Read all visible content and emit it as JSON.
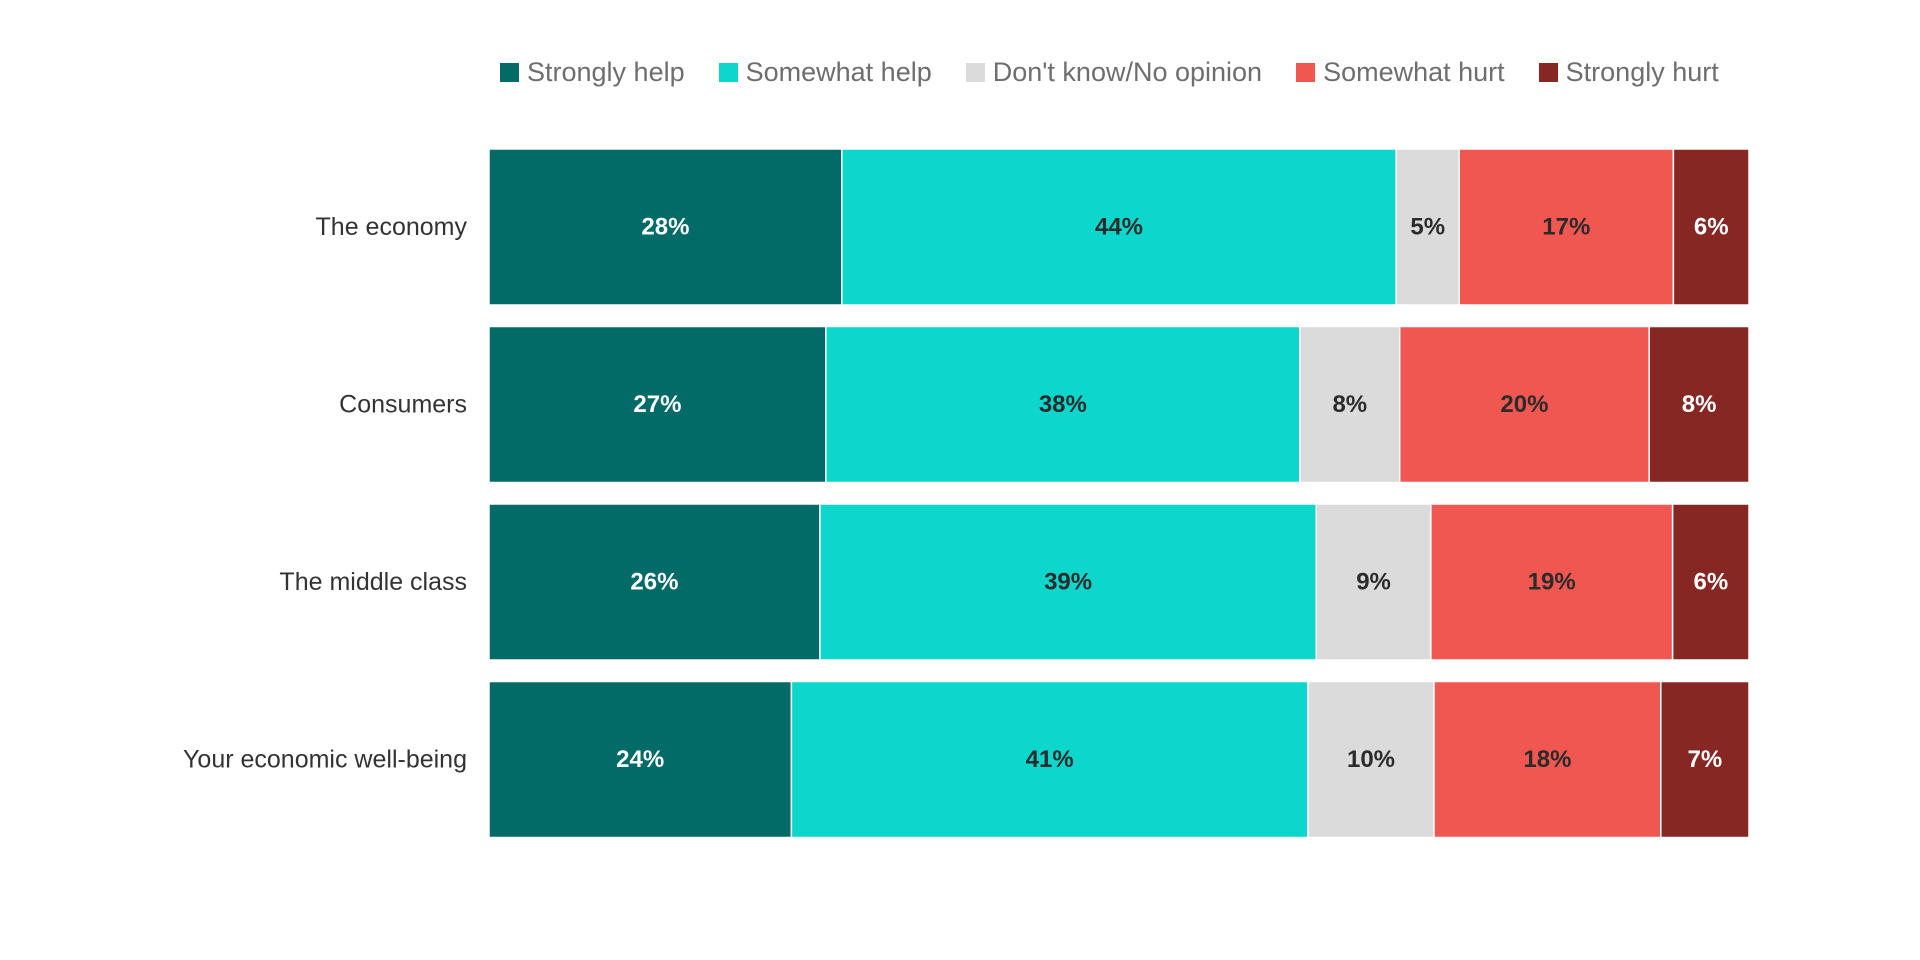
{
  "chart_data": {
    "type": "bar",
    "orientation": "horizontal",
    "stacked": true,
    "categories": [
      "The economy",
      "Consumers",
      "The middle class",
      "Your economic well-being"
    ],
    "series": [
      {
        "name": "Strongly help",
        "color": "#026a67",
        "label_color": "#ffffff",
        "values": [
          28,
          27,
          26,
          24
        ]
      },
      {
        "name": "Somewhat help",
        "color": "#0dd6cd",
        "label_color": "#2b2b2b",
        "values": [
          44,
          38,
          39,
          41
        ]
      },
      {
        "name": "Don't know/No opinion",
        "color": "#dadbda",
        "label_color": "#2b2b2b",
        "values": [
          5,
          8,
          9,
          10
        ]
      },
      {
        "name": "Somewhat hurt",
        "color": "#f05751",
        "label_color": "#2b2b2b",
        "values": [
          17,
          20,
          19,
          18
        ]
      },
      {
        "name": "Strongly hurt",
        "color": "#862724",
        "label_color": "#ffffff",
        "values": [
          6,
          8,
          6,
          7
        ]
      }
    ],
    "value_suffix": "%",
    "xlim": [
      0,
      100
    ],
    "title": "",
    "xlabel": "",
    "ylabel": "",
    "legend_position": "top",
    "grid": false
  }
}
